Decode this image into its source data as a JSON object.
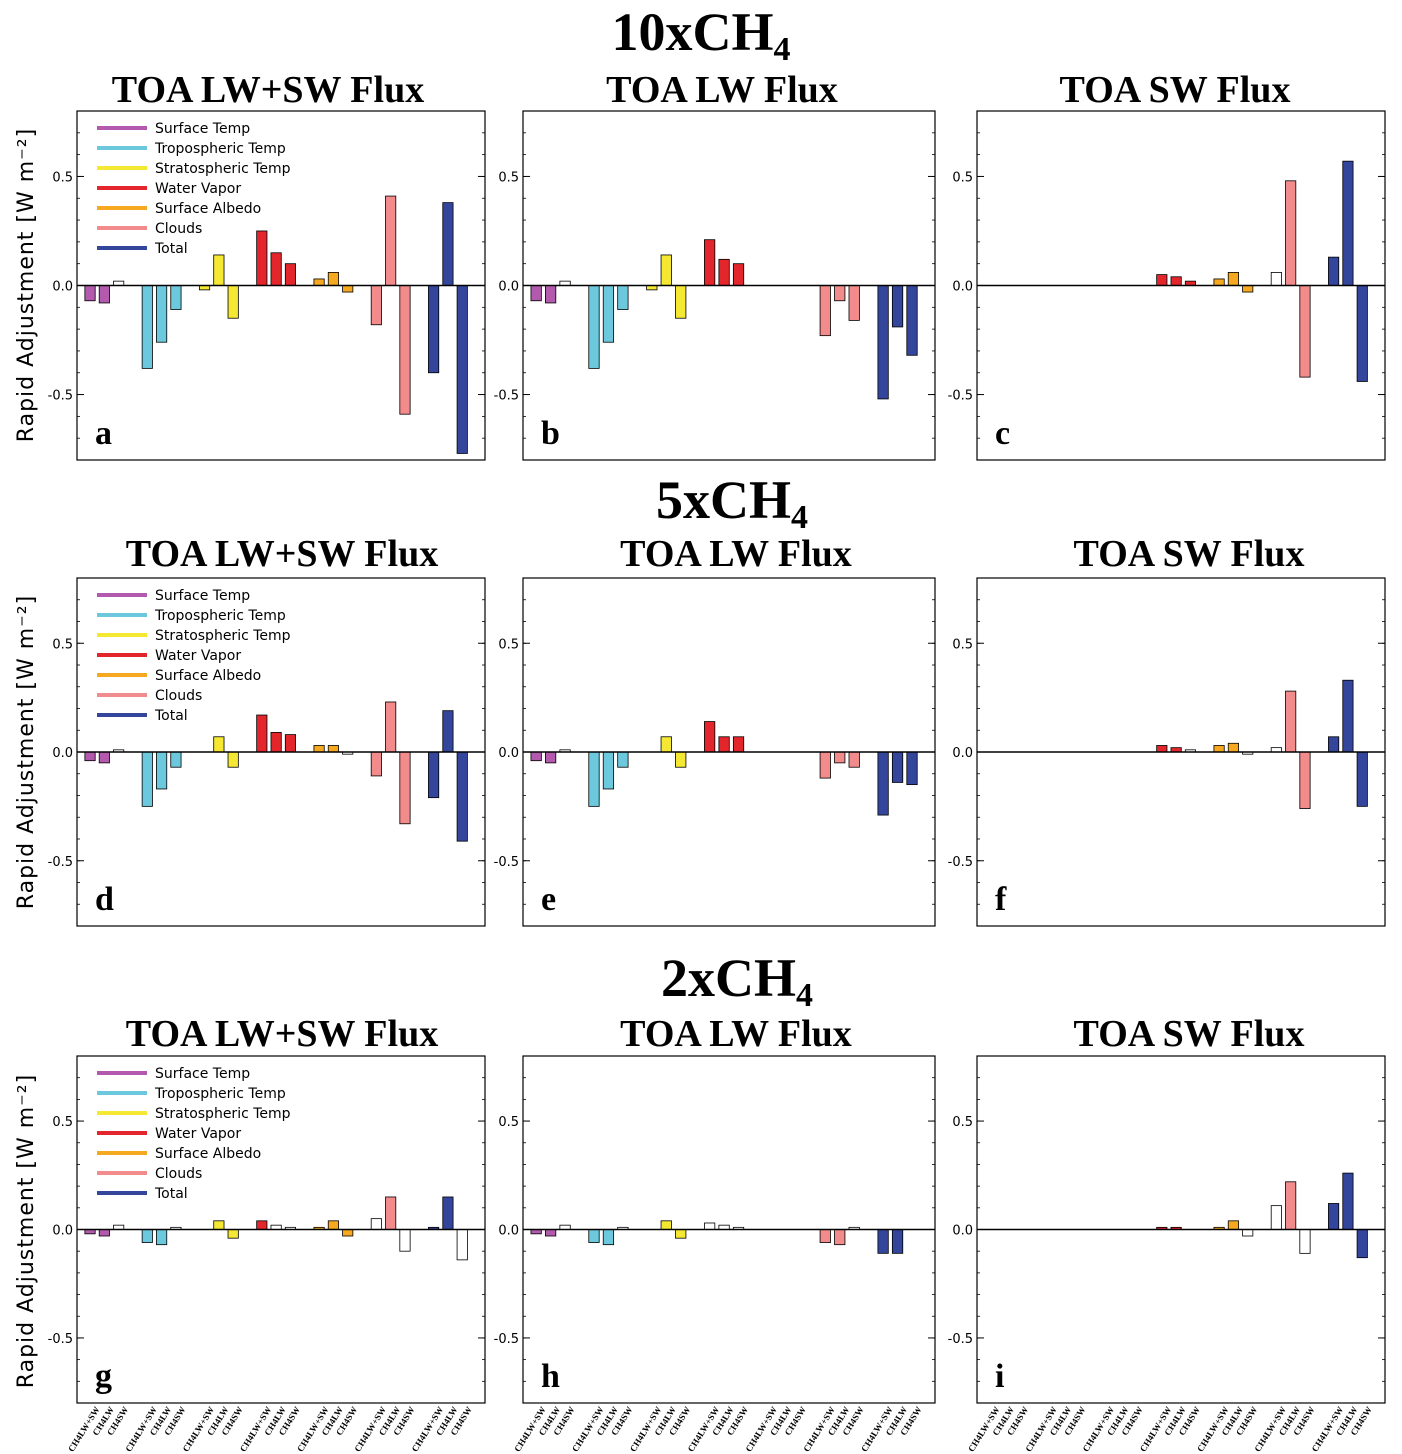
{
  "chart_data": {
    "type": "bar",
    "ylabel": "Rapid Adjustment [W m⁻²]",
    "ylim": [
      -0.8,
      0.8
    ],
    "yticks": [
      "0.5",
      "0.0",
      "-0.5"
    ],
    "groups": [
      "Surface Temp",
      "Tropospheric Temp",
      "Stratospheric Temp",
      "Water Vapor",
      "Surface Albedo",
      "Clouds",
      "Total"
    ],
    "categories": [
      "CH4LW+SW",
      "CH4LW",
      "CH4SW"
    ],
    "colors": {
      "Surface Temp": "#b35aae",
      "Tropospheric Temp": "#6cc8dc",
      "Stratospheric Temp": "#f4e832",
      "Water Vapor": "#e3262c",
      "Surface Albedo": "#f6a821",
      "Clouds": "#f28b8b",
      "Total": "#33469b",
      "empty": "#ffffff",
      "axis": "#000000"
    },
    "legend": {
      "placement": "top-left",
      "entries": [
        "Surface Temp",
        "Tropospheric Temp",
        "Stratospheric Temp",
        "Water Vapor",
        "Surface Albedo",
        "Clouds",
        "Total"
      ]
    },
    "rows": [
      {
        "title": "10xCH",
        "title_sub": "4",
        "panels": [
          {
            "title": "TOA LW+SW Flux",
            "letter": "a",
            "legend": true,
            "values": [
              [
                -0.07,
                -0.08,
                0.02
              ],
              [
                -0.38,
                -0.26,
                -0.11
              ],
              [
                -0.02,
                0.14,
                -0.15
              ],
              [
                0.25,
                0.15,
                0.1
              ],
              [
                0.03,
                0.06,
                -0.03
              ],
              [
                -0.18,
                0.41,
                -0.59
              ],
              [
                -0.4,
                0.38,
                -0.77
              ]
            ],
            "hollow": [
              [
                false,
                false,
                true
              ],
              [
                false,
                false,
                false
              ],
              [
                false,
                false,
                false
              ],
              [
                false,
                false,
                false
              ],
              [
                false,
                false,
                false
              ],
              [
                false,
                false,
                false
              ],
              [
                false,
                false,
                false
              ]
            ]
          },
          {
            "title": "TOA LW Flux",
            "letter": "b",
            "legend": false,
            "values": [
              [
                -0.07,
                -0.08,
                0.02
              ],
              [
                -0.38,
                -0.26,
                -0.11
              ],
              [
                -0.02,
                0.14,
                -0.15
              ],
              [
                0.21,
                0.12,
                0.1
              ],
              [
                0.0,
                0.0,
                0.0
              ],
              [
                -0.23,
                -0.07,
                -0.16
              ],
              [
                -0.52,
                -0.19,
                -0.32
              ]
            ],
            "hollow": [
              [
                false,
                false,
                true
              ],
              [
                false,
                false,
                false
              ],
              [
                false,
                false,
                false
              ],
              [
                false,
                false,
                false
              ],
              [
                false,
                false,
                false
              ],
              [
                false,
                false,
                false
              ],
              [
                false,
                false,
                false
              ]
            ]
          },
          {
            "title": "TOA SW Flux",
            "letter": "c",
            "legend": false,
            "values": [
              [
                0.0,
                0.0,
                0.0
              ],
              [
                0.0,
                0.0,
                0.0
              ],
              [
                0.0,
                0.0,
                0.0
              ],
              [
                0.05,
                0.04,
                0.02
              ],
              [
                0.03,
                0.06,
                -0.03
              ],
              [
                0.06,
                0.48,
                -0.42
              ],
              [
                0.13,
                0.57,
                -0.44
              ]
            ],
            "hollow": [
              [
                false,
                false,
                false
              ],
              [
                false,
                false,
                false
              ],
              [
                false,
                false,
                false
              ],
              [
                false,
                false,
                false
              ],
              [
                false,
                false,
                false
              ],
              [
                true,
                false,
                false
              ],
              [
                false,
                false,
                false
              ]
            ]
          }
        ]
      },
      {
        "title": "5xCH",
        "title_sub": "4",
        "panels": [
          {
            "title": "TOA LW+SW Flux",
            "letter": "d",
            "legend": true,
            "values": [
              [
                -0.04,
                -0.05,
                0.01
              ],
              [
                -0.25,
                -0.17,
                -0.07
              ],
              [
                0.0,
                0.07,
                -0.07
              ],
              [
                0.17,
                0.09,
                0.08
              ],
              [
                0.03,
                0.03,
                -0.01
              ],
              [
                -0.11,
                0.23,
                -0.33
              ],
              [
                -0.21,
                0.19,
                -0.41
              ]
            ],
            "hollow": [
              [
                false,
                false,
                true
              ],
              [
                false,
                false,
                false
              ],
              [
                false,
                false,
                false
              ],
              [
                false,
                false,
                false
              ],
              [
                false,
                false,
                true
              ],
              [
                false,
                false,
                false
              ],
              [
                false,
                false,
                false
              ]
            ]
          },
          {
            "title": "TOA LW Flux",
            "letter": "e",
            "legend": false,
            "values": [
              [
                -0.04,
                -0.05,
                0.01
              ],
              [
                -0.25,
                -0.17,
                -0.07
              ],
              [
                0.0,
                0.07,
                -0.07
              ],
              [
                0.14,
                0.07,
                0.07
              ],
              [
                0.0,
                0.0,
                0.0
              ],
              [
                -0.12,
                -0.05,
                -0.07
              ],
              [
                -0.29,
                -0.14,
                -0.15
              ]
            ],
            "hollow": [
              [
                false,
                false,
                true
              ],
              [
                false,
                false,
                false
              ],
              [
                false,
                false,
                false
              ],
              [
                false,
                false,
                false
              ],
              [
                false,
                false,
                false
              ],
              [
                false,
                false,
                false
              ],
              [
                false,
                false,
                false
              ]
            ]
          },
          {
            "title": "TOA SW Flux",
            "letter": "f",
            "legend": false,
            "values": [
              [
                0.0,
                0.0,
                0.0
              ],
              [
                0.0,
                0.0,
                0.0
              ],
              [
                0.0,
                0.0,
                0.0
              ],
              [
                0.03,
                0.02,
                0.01
              ],
              [
                0.03,
                0.04,
                -0.01
              ],
              [
                0.02,
                0.28,
                -0.26
              ],
              [
                0.07,
                0.33,
                -0.25
              ]
            ],
            "hollow": [
              [
                false,
                false,
                false
              ],
              [
                false,
                false,
                false
              ],
              [
                false,
                false,
                false
              ],
              [
                false,
                false,
                true
              ],
              [
                false,
                false,
                true
              ],
              [
                true,
                false,
                false
              ],
              [
                false,
                false,
                false
              ]
            ]
          }
        ]
      },
      {
        "title": "2xCH",
        "title_sub": "4",
        "panels": [
          {
            "title": "TOA LW+SW Flux",
            "letter": "g",
            "legend": true,
            "values": [
              [
                -0.02,
                -0.03,
                0.02
              ],
              [
                -0.06,
                -0.07,
                0.01
              ],
              [
                0.0,
                0.04,
                -0.04
              ],
              [
                0.04,
                0.02,
                0.01
              ],
              [
                0.01,
                0.04,
                -0.03
              ],
              [
                0.05,
                0.15,
                -0.1
              ],
              [
                0.01,
                0.15,
                -0.14
              ]
            ],
            "hollow": [
              [
                false,
                false,
                true
              ],
              [
                false,
                false,
                true
              ],
              [
                false,
                false,
                false
              ],
              [
                false,
                true,
                true
              ],
              [
                false,
                false,
                false
              ],
              [
                true,
                false,
                true
              ],
              [
                false,
                false,
                true
              ]
            ]
          },
          {
            "title": "TOA LW Flux",
            "letter": "h",
            "legend": false,
            "values": [
              [
                -0.02,
                -0.03,
                0.02
              ],
              [
                -0.06,
                -0.07,
                0.01
              ],
              [
                0.0,
                0.04,
                -0.04
              ],
              [
                0.03,
                0.02,
                0.01
              ],
              [
                0.0,
                0.0,
                0.0
              ],
              [
                -0.06,
                -0.07,
                0.01
              ],
              [
                -0.11,
                -0.11,
                0.0
              ]
            ],
            "hollow": [
              [
                false,
                false,
                true
              ],
              [
                false,
                false,
                true
              ],
              [
                false,
                false,
                false
              ],
              [
                true,
                true,
                true
              ],
              [
                false,
                false,
                false
              ],
              [
                false,
                false,
                true
              ],
              [
                false,
                false,
                false
              ]
            ]
          },
          {
            "title": "TOA SW Flux",
            "letter": "i",
            "legend": false,
            "values": [
              [
                0.0,
                0.0,
                0.0
              ],
              [
                0.0,
                0.0,
                0.0
              ],
              [
                0.0,
                0.0,
                0.0
              ],
              [
                0.01,
                0.01,
                0.0
              ],
              [
                0.01,
                0.04,
                -0.03
              ],
              [
                0.11,
                0.22,
                -0.11
              ],
              [
                0.12,
                0.26,
                -0.13
              ]
            ],
            "hollow": [
              [
                false,
                false,
                false
              ],
              [
                false,
                false,
                false
              ],
              [
                false,
                false,
                false
              ],
              [
                false,
                false,
                false
              ],
              [
                false,
                false,
                true
              ],
              [
                true,
                false,
                true
              ],
              [
                false,
                false,
                false
              ]
            ]
          }
        ]
      }
    ]
  }
}
